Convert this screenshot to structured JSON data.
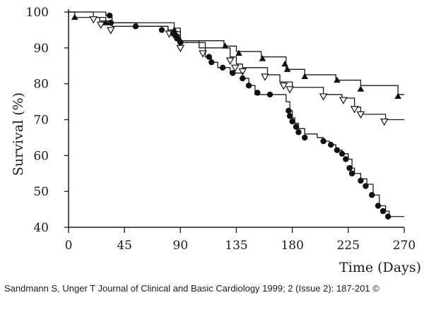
{
  "chart_data": {
    "type": "line",
    "title": "",
    "xlabel": "Time (Days)",
    "ylabel": "Survival (%)",
    "xlim": [
      0,
      270
    ],
    "ylim": [
      40,
      100
    ],
    "x_ticks": [
      0,
      45,
      90,
      135,
      180,
      225,
      270
    ],
    "y_ticks": [
      40,
      50,
      60,
      70,
      80,
      90,
      100
    ],
    "grid": false,
    "step": true,
    "series": [
      {
        "marker": "filled-triangle",
        "points": [
          [
            0,
            100
          ],
          [
            5,
            98.5
          ],
          [
            30,
            97
          ],
          [
            85,
            95.5
          ],
          [
            90,
            92
          ],
          [
            125,
            90.5
          ],
          [
            135,
            89
          ],
          [
            155,
            87.5
          ],
          [
            175,
            85.5
          ],
          [
            175,
            84
          ],
          [
            190,
            82.5
          ],
          [
            215,
            81
          ],
          [
            235,
            79.5
          ],
          [
            265,
            77
          ],
          [
            270,
            77
          ]
        ],
        "markers": [
          [
            5,
            98.5
          ],
          [
            30,
            97
          ],
          [
            85,
            95
          ],
          [
            90,
            92
          ],
          [
            126,
            90.5
          ],
          [
            137,
            88.5
          ],
          [
            156,
            87
          ],
          [
            174,
            85.5
          ],
          [
            176,
            84
          ],
          [
            190,
            82
          ],
          [
            216,
            81
          ],
          [
            235,
            78.5
          ],
          [
            265,
            76.5
          ]
        ]
      },
      {
        "marker": "open-triangle",
        "points": [
          [
            0,
            100
          ],
          [
            20,
            98.5
          ],
          [
            25,
            97.5
          ],
          [
            35,
            96
          ],
          [
            80,
            94.5
          ],
          [
            90,
            91.5
          ],
          [
            110,
            90
          ],
          [
            130,
            87.5
          ],
          [
            135,
            85.5
          ],
          [
            140,
            84.5
          ],
          [
            160,
            82.5
          ],
          [
            170,
            80.5
          ],
          [
            180,
            79
          ],
          [
            205,
            77
          ],
          [
            220,
            76
          ],
          [
            230,
            73.5
          ],
          [
            235,
            71.5
          ],
          [
            255,
            70
          ],
          [
            270,
            70
          ]
        ],
        "markers": [
          [
            20,
            98
          ],
          [
            26,
            96.5
          ],
          [
            34,
            95
          ],
          [
            81,
            94
          ],
          [
            86,
            93
          ],
          [
            90,
            90
          ],
          [
            108,
            88.5
          ],
          [
            130,
            86.5
          ],
          [
            134,
            84.5
          ],
          [
            140,
            83.5
          ],
          [
            158,
            82
          ],
          [
            173,
            79.5
          ],
          [
            178,
            78.5
          ],
          [
            205,
            76.5
          ],
          [
            221,
            75.5
          ],
          [
            230,
            73
          ],
          [
            235,
            71.5
          ],
          [
            254,
            69.5
          ]
        ]
      },
      {
        "marker": "filled-circle",
        "points": [
          [
            0,
            100
          ],
          [
            30,
            99
          ],
          [
            35,
            97
          ],
          [
            55,
            96
          ],
          [
            80,
            95
          ],
          [
            85,
            93.5
          ],
          [
            90,
            92
          ],
          [
            105,
            90
          ],
          [
            110,
            87.5
          ],
          [
            115,
            86
          ],
          [
            120,
            84.5
          ],
          [
            130,
            83
          ],
          [
            140,
            81.5
          ],
          [
            145,
            79.5
          ],
          [
            150,
            77
          ],
          [
            175,
            75
          ],
          [
            178,
            72.5
          ],
          [
            180,
            70.5
          ],
          [
            182,
            69
          ],
          [
            185,
            67.5
          ],
          [
            190,
            66
          ],
          [
            200,
            65
          ],
          [
            205,
            64
          ],
          [
            210,
            63
          ],
          [
            215,
            61.5
          ],
          [
            220,
            60.5
          ],
          [
            225,
            59
          ],
          [
            228,
            56.5
          ],
          [
            230,
            55
          ],
          [
            235,
            53.5
          ],
          [
            240,
            52
          ],
          [
            245,
            49
          ],
          [
            250,
            46
          ],
          [
            255,
            44.5
          ],
          [
            258,
            43
          ],
          [
            270,
            43
          ]
        ],
        "markers": [
          [
            33,
            99
          ],
          [
            34,
            97
          ],
          [
            54,
            96
          ],
          [
            75,
            95
          ],
          [
            84,
            94
          ],
          [
            86,
            93.5
          ],
          [
            88,
            92.5
          ],
          [
            90,
            91.5
          ],
          [
            113,
            87.5
          ],
          [
            115,
            86
          ],
          [
            124,
            84.5
          ],
          [
            132,
            83
          ],
          [
            140,
            81.5
          ],
          [
            145,
            79.5
          ],
          [
            152,
            77.5
          ],
          [
            162,
            77
          ],
          [
            177,
            72.5
          ],
          [
            178,
            71
          ],
          [
            180,
            69.5
          ],
          [
            183,
            68
          ],
          [
            185,
            66.5
          ],
          [
            190,
            65
          ],
          [
            205,
            64
          ],
          [
            211,
            63
          ],
          [
            216,
            61.5
          ],
          [
            220,
            60.5
          ],
          [
            223,
            59
          ],
          [
            226,
            56.5
          ],
          [
            228,
            55
          ],
          [
            235,
            53
          ],
          [
            239,
            51.5
          ],
          [
            244,
            49
          ],
          [
            249,
            46
          ],
          [
            253,
            44.5
          ],
          [
            257,
            43
          ]
        ]
      }
    ]
  },
  "caption": "Sandmann S, Unger T Journal of Clinical and Basic Cardiology 1999; 2 (Issue 2): 187-201 ©"
}
